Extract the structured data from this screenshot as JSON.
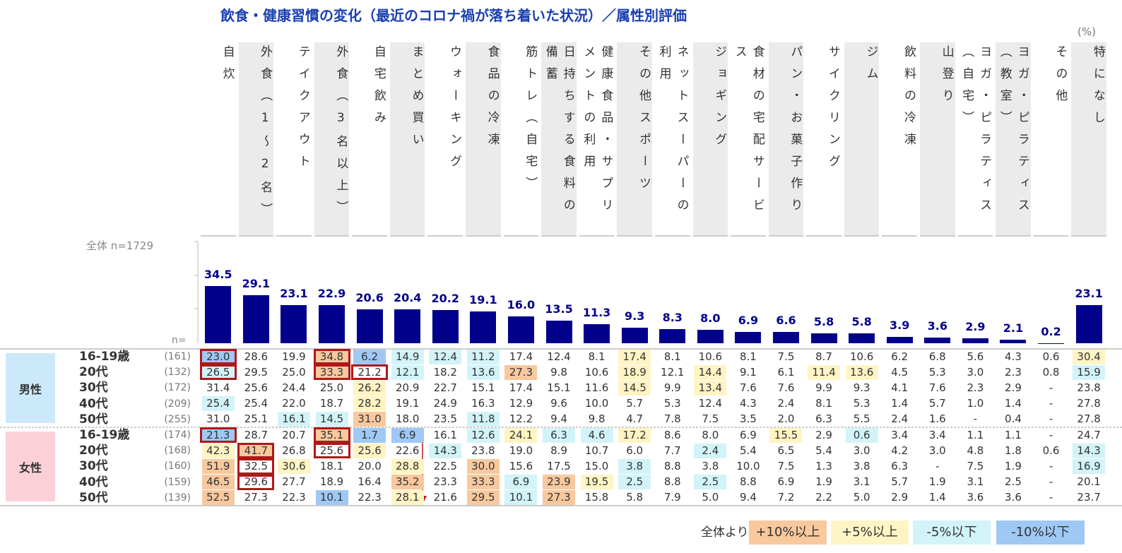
{
  "title": "飲食・健康習慣の変化（最近のコロナ禍が落ち着いた状況）／属性別評価",
  "unit": "(%)",
  "total_label": "全体 n=1729",
  "n_label": "n=",
  "chart_data": {
    "type": "bar",
    "color": "#00008b",
    "categories": [
      "自炊",
      "外食（1～2名）",
      "テイクアウト",
      "外食（3名以上）",
      "自宅飲み",
      "まとめ買い",
      "ウォーキング",
      "食品の冷凍",
      "筋トレ（自宅）",
      "日持ちする食料の備蓄",
      "健康食品・サプリメントの利用",
      "その他スポーツ",
      "ネットスーパーの利用",
      "ジョギング",
      "食材の宅配サービス",
      "パン・お菓子作り",
      "サイクリング",
      "ジム",
      "飲料の冷凍",
      "山登り",
      "ヨガ・ピラティス（自宅）",
      "ヨガ・ピラティス（教室）",
      "その他",
      "特になし"
    ],
    "values": [
      34.5,
      29.1,
      23.1,
      22.9,
      20.6,
      20.4,
      20.2,
      19.1,
      16.0,
      13.5,
      11.3,
      9.3,
      8.3,
      8.0,
      6.9,
      6.6,
      5.8,
      5.8,
      3.9,
      3.6,
      2.9,
      2.1,
      0.2,
      23.1
    ],
    "value_labels": [
      "34.5",
      "29.1",
      "23.1",
      "22.9",
      "20.6",
      "20.4",
      "20.2",
      "19.1",
      "16.0",
      "13.5",
      "11.3",
      "9.3",
      "8.3",
      "8.0",
      "6.9",
      "6.6",
      "5.8",
      "5.8",
      "3.9",
      "3.6",
      "2.9",
      "2.1",
      "0.2",
      "23.1"
    ]
  },
  "table": {
    "groups": [
      {
        "label": "男性",
        "color": "#cce9fb",
        "rows": [
          {
            "label": "16-19歳",
            "n": "(161)",
            "cells": [
              "23.0",
              "28.6",
              "19.9",
              "34.8",
              "6.2",
              "14.9",
              "12.4",
              "11.2",
              "17.4",
              "12.4",
              "8.1",
              "17.4",
              "8.1",
              "10.6",
              "8.1",
              "7.5",
              "8.7",
              "10.6",
              "6.2",
              "6.8",
              "5.6",
              "4.3",
              "0.6",
              "30.4"
            ]
          },
          {
            "label": "20代",
            "n": "(132)",
            "cells": [
              "26.5",
              "29.5",
              "25.0",
              "33.3",
              "21.2",
              "12.1",
              "18.2",
              "13.6",
              "27.3",
              "9.8",
              "10.6",
              "18.9",
              "12.1",
              "14.4",
              "9.1",
              "6.1",
              "11.4",
              "13.6",
              "4.5",
              "5.3",
              "3.0",
              "2.3",
              "0.8",
              "15.9"
            ]
          },
          {
            "label": "30代",
            "n": "(172)",
            "cells": [
              "31.4",
              "25.6",
              "24.4",
              "25.0",
              "26.2",
              "20.9",
              "22.7",
              "15.1",
              "17.4",
              "15.1",
              "11.6",
              "14.5",
              "9.9",
              "13.4",
              "7.6",
              "7.6",
              "9.9",
              "9.3",
              "4.1",
              "7.6",
              "2.3",
              "2.9",
              "-",
              "23.8"
            ]
          },
          {
            "label": "40代",
            "n": "(209)",
            "cells": [
              "25.4",
              "25.4",
              "22.0",
              "18.7",
              "28.2",
              "19.1",
              "24.9",
              "16.3",
              "12.9",
              "9.6",
              "10.0",
              "5.7",
              "5.3",
              "12.4",
              "4.3",
              "2.4",
              "8.1",
              "5.3",
              "1.4",
              "5.7",
              "1.0",
              "1.4",
              "-",
              "27.8"
            ]
          },
          {
            "label": "50代",
            "n": "(255)",
            "cells": [
              "31.0",
              "25.1",
              "16.1",
              "14.5",
              "31.0",
              "18.0",
              "23.5",
              "11.8",
              "12.2",
              "9.4",
              "9.8",
              "4.7",
              "7.8",
              "7.5",
              "3.5",
              "2.0",
              "6.3",
              "5.5",
              "2.4",
              "1.6",
              "-",
              "0.4",
              "-",
              "27.8"
            ]
          }
        ]
      },
      {
        "label": "女性",
        "color": "#fcd0d8",
        "rows": [
          {
            "label": "16-19歳",
            "n": "(174)",
            "cells": [
              "21.3",
              "28.7",
              "20.7",
              "35.1",
              "1.7",
              "6.9",
              "16.1",
              "12.6",
              "24.1",
              "6.3",
              "4.6",
              "17.2",
              "8.6",
              "8.0",
              "6.9",
              "15.5",
              "2.9",
              "0.6",
              "3.4",
              "3.4",
              "1.1",
              "1.1",
              "-",
              "24.7"
            ]
          },
          {
            "label": "20代",
            "n": "(168)",
            "cells": [
              "42.3",
              "41.7",
              "26.8",
              "25.6",
              "25.6",
              "22.6",
              "14.3",
              "23.8",
              "19.0",
              "8.9",
              "10.7",
              "6.0",
              "7.7",
              "2.4",
              "5.4",
              "6.5",
              "5.4",
              "3.0",
              "4.2",
              "3.0",
              "4.8",
              "1.8",
              "0.6",
              "14.3"
            ]
          },
          {
            "label": "30代",
            "n": "(160)",
            "cells": [
              "51.9",
              "32.5",
              "30.6",
              "18.1",
              "20.0",
              "28.8",
              "22.5",
              "30.0",
              "15.6",
              "17.5",
              "15.0",
              "3.8",
              "8.8",
              "3.8",
              "10.0",
              "7.5",
              "1.3",
              "3.8",
              "6.3",
              "-",
              "7.5",
              "1.9",
              "-",
              "16.9"
            ]
          },
          {
            "label": "40代",
            "n": "(159)",
            "cells": [
              "46.5",
              "29.6",
              "27.7",
              "18.9",
              "16.4",
              "35.2",
              "23.3",
              "33.3",
              "6.9",
              "23.9",
              "19.5",
              "2.5",
              "8.8",
              "2.5",
              "8.8",
              "6.9",
              "1.9",
              "3.1",
              "5.7",
              "1.9",
              "3.1",
              "2.5",
              "-",
              "20.1"
            ]
          },
          {
            "label": "50代",
            "n": "(139)",
            "cells": [
              "52.5",
              "27.3",
              "22.3",
              "10.1",
              "22.3",
              "28.1",
              "21.6",
              "29.5",
              "10.1",
              "27.3",
              "15.8",
              "5.8",
              "7.9",
              "5.0",
              "9.4",
              "7.2",
              "2.2",
              "5.0",
              "2.9",
              "1.4",
              "3.6",
              "3.6",
              "-",
              "23.7"
            ]
          }
        ]
      }
    ],
    "highlighted_cells": [
      [
        0,
        0
      ],
      [
        0,
        3
      ],
      [
        1,
        0
      ],
      [
        1,
        3
      ],
      [
        1,
        4
      ],
      [
        5,
        0
      ],
      [
        5,
        3
      ],
      [
        6,
        1
      ],
      [
        6,
        3
      ],
      [
        7,
        1
      ],
      [
        8,
        1
      ]
    ]
  },
  "legend": {
    "title": "全体より",
    "items": [
      {
        "label": "+10%以上",
        "color": "#f8c89e",
        "threshold": 10
      },
      {
        "label": "+5%以上",
        "color": "#fff4c4",
        "threshold": 5
      },
      {
        "label": "-5%以下",
        "color": "#d2f4f8",
        "threshold": -5
      },
      {
        "label": "-10%以下",
        "color": "#9fc8f4",
        "threshold": -10
      }
    ]
  }
}
